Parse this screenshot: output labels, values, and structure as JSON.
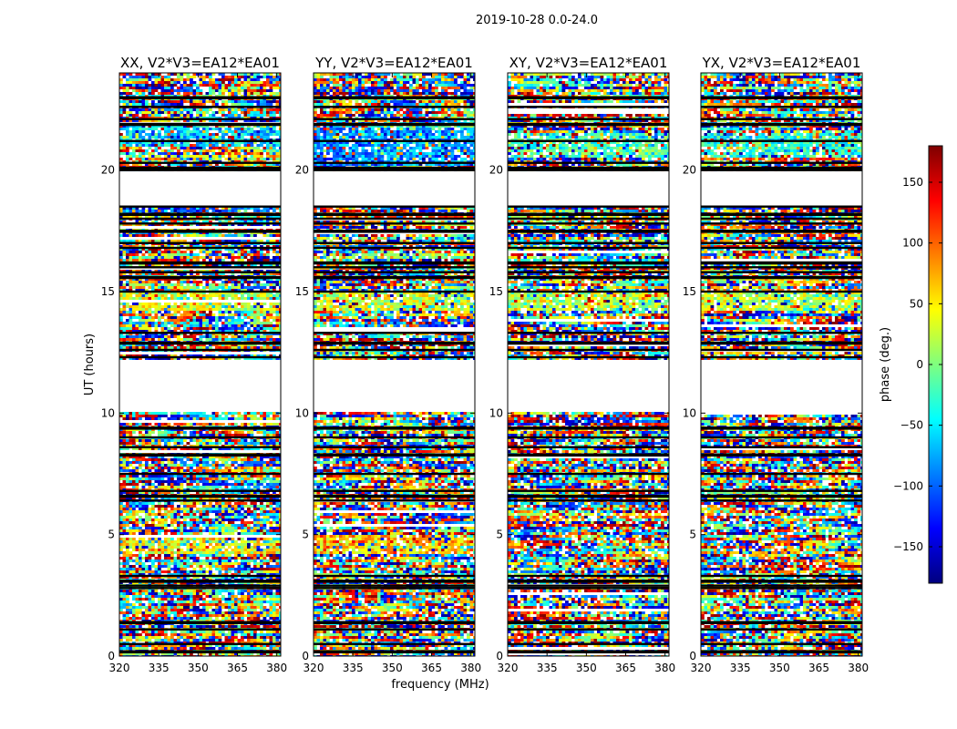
{
  "figure": {
    "suptitle": "2019-10-28 0.0-24.0",
    "ylabel": "UT (hours)",
    "xlabel": "frequency (MHz)"
  },
  "chart_data": [
    {
      "type": "heatmap",
      "title": "XX, V2*V3=EA12*EA01",
      "xlabel": "frequency (MHz)",
      "ylabel": "UT (hours)",
      "xlim": [
        320,
        381.5
      ],
      "ylim": [
        0,
        24
      ],
      "xticks": [
        320,
        335,
        350,
        365,
        380
      ],
      "yticks": [
        0,
        5,
        10,
        15,
        20
      ],
      "mean_phase_by_band": {
        "bands_hours": [
          [
            21.0,
            21.8
          ],
          [
            14.2,
            15.0
          ],
          [
            4.2,
            5.0
          ]
        ],
        "values_deg": [
          -60,
          30,
          45
        ]
      }
    },
    {
      "type": "heatmap",
      "title": "YY, V2*V3=EA12*EA01",
      "xlabel": "frequency (MHz)",
      "ylabel": "UT (hours)",
      "xlim": [
        320,
        381.5
      ],
      "ylim": [
        0,
        24
      ],
      "xticks": [
        320,
        335,
        350,
        365,
        380
      ],
      "yticks": [
        0,
        5,
        10,
        15,
        20
      ],
      "mean_phase_by_band": {
        "bands_hours": [
          [
            20.2,
            21.8
          ],
          [
            14.2,
            15.0
          ],
          [
            4.2,
            5.0
          ]
        ],
        "values_deg": [
          -85,
          30,
          60
        ]
      }
    },
    {
      "type": "heatmap",
      "title": "XY, V2*V3=EA12*EA01",
      "xlabel": "frequency (MHz)",
      "ylabel": "UT (hours)",
      "xlim": [
        320,
        381.5
      ],
      "ylim": [
        0,
        24
      ],
      "xticks": [
        320,
        335,
        350,
        365,
        380
      ],
      "yticks": [
        0,
        5,
        10,
        15,
        20
      ],
      "mean_phase_by_band": {
        "bands_hours": [
          [
            20.5,
            21.5
          ],
          [
            14.2,
            15.0
          ]
        ],
        "values_deg": [
          -20,
          20
        ]
      }
    },
    {
      "type": "heatmap",
      "title": "YX, V2*V3=EA12*EA01",
      "xlabel": "frequency (MHz)",
      "ylabel": "UT (hours)",
      "xlim": [
        320,
        381.5
      ],
      "ylim": [
        0,
        24
      ],
      "xticks": [
        320,
        335,
        350,
        365,
        380
      ],
      "yticks": [
        0,
        5,
        10,
        15,
        20
      ],
      "mean_phase_by_band": {
        "bands_hours": [
          [
            20.5,
            21.5
          ],
          [
            14.2,
            15.0
          ]
        ],
        "values_deg": [
          -30,
          20
        ]
      }
    }
  ],
  "shared": {
    "blank_periods_hours": [
      [
        10.0,
        12.2
      ],
      [
        18.5,
        20.0
      ]
    ],
    "flag_line_hours": [
      0.2,
      0.5,
      1.1,
      1.4,
      2.8,
      2.9,
      3.1,
      3.3,
      6.4,
      6.6,
      6.8,
      7.5,
      8.3,
      8.6,
      9.0,
      9.4,
      12.3,
      12.6,
      12.9,
      13.3,
      15.0,
      15.6,
      15.8,
      16.0,
      16.2,
      16.8,
      17.0,
      17.5,
      17.8,
      18.0,
      18.2,
      18.5,
      20.0,
      20.1,
      20.3,
      21.2,
      21.9,
      22.1,
      22.6,
      23.0
    ]
  },
  "colorbar": {
    "label": "phase (deg.)",
    "range": [
      -180,
      180
    ],
    "ticks": [
      -150,
      -100,
      -50,
      0,
      50,
      100,
      150
    ],
    "tick_labels": [
      "−150",
      "−100",
      "−50",
      "0",
      "50",
      "100",
      "150"
    ],
    "colormap": "jet",
    "colors": [
      "#00007f",
      "#0000ff",
      "#007fff",
      "#00ffff",
      "#7fff7f",
      "#ffff00",
      "#ff7f00",
      "#ff0000",
      "#7f0000"
    ]
  }
}
